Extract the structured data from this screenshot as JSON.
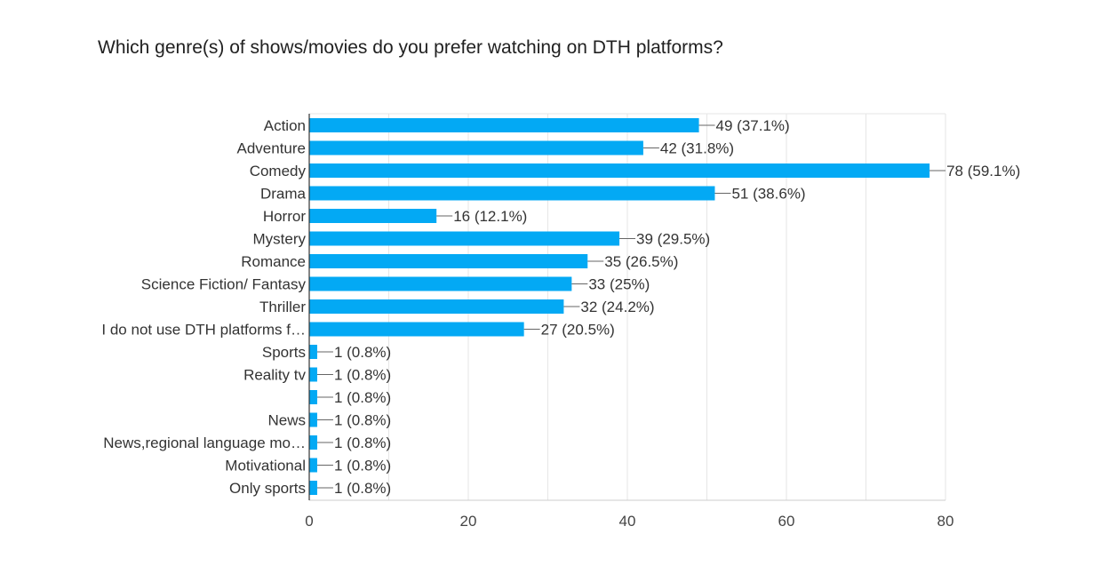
{
  "chart_data": {
    "type": "bar",
    "orientation": "horizontal",
    "title": "Which genre(s) of shows/movies do you prefer watching on DTH platforms?",
    "categories": [
      "Action",
      "Adventure",
      "Comedy",
      "Drama",
      "Horror",
      "Mystery",
      "Romance",
      "Science Fiction/ Fantasy",
      "Thriller",
      "I do not use DTH platforms f…",
      "Sports",
      "Reality tv",
      "",
      "News",
      "News,regional language mo…",
      "Motivational",
      "Only sports"
    ],
    "values": [
      49,
      42,
      78,
      51,
      16,
      39,
      35,
      33,
      32,
      27,
      1,
      1,
      1,
      1,
      1,
      1,
      1
    ],
    "value_labels": [
      "49 (37.1%)",
      "42 (31.8%)",
      "78 (59.1%)",
      "51 (38.6%)",
      "16 (12.1%)",
      "39 (29.5%)",
      "35 (26.5%)",
      "33 (25%)",
      "32 (24.2%)",
      "27 (20.5%)",
      "1 (0.8%)",
      "1 (0.8%)",
      "1 (0.8%)",
      "1 (0.8%)",
      "1 (0.8%)",
      "1 (0.8%)",
      "1 (0.8%)"
    ],
    "xlim": [
      0,
      80
    ],
    "xticks": [
      "0",
      "20",
      "40",
      "60",
      "80"
    ],
    "grid": true,
    "bar_color": "#03a9f4"
  }
}
